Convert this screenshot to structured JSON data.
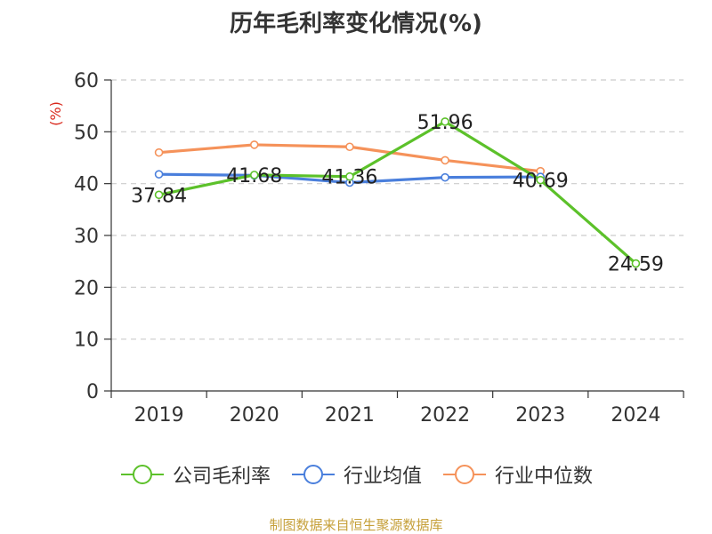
{
  "title": "历年毛利率变化情况(%)",
  "footer": "制图数据来自恒生聚源数据库",
  "chart_data": {
    "type": "line",
    "title": "历年毛利率变化情况(%)",
    "ylabel": "(%)",
    "xlabel": "",
    "categories": [
      "2019",
      "2020",
      "2021",
      "2022",
      "2023",
      "2024"
    ],
    "ylim": [
      0,
      60
    ],
    "yticks": [
      0,
      10,
      20,
      30,
      40,
      50,
      60
    ],
    "grid": "horizontal dashed",
    "legend_position": "bottom",
    "series": [
      {
        "name": "公司毛利率",
        "color": "#5cc12a",
        "values": [
          37.84,
          41.68,
          41.36,
          51.96,
          40.69,
          24.59
        ],
        "labels": [
          "37.84",
          "41.68",
          "41.36",
          "51.96",
          "40.69",
          "24.59"
        ]
      },
      {
        "name": "行业均值",
        "color": "#4a7fdc",
        "values": [
          41.8,
          41.6,
          40.2,
          41.2,
          41.3,
          null
        ]
      },
      {
        "name": "行业中位数",
        "color": "#f5925a",
        "values": [
          46.0,
          47.5,
          47.1,
          44.5,
          42.4,
          null
        ]
      }
    ],
    "colors": {
      "axis": "#333333",
      "grid": "#cccccc",
      "ylabel": "#d9281c"
    }
  }
}
